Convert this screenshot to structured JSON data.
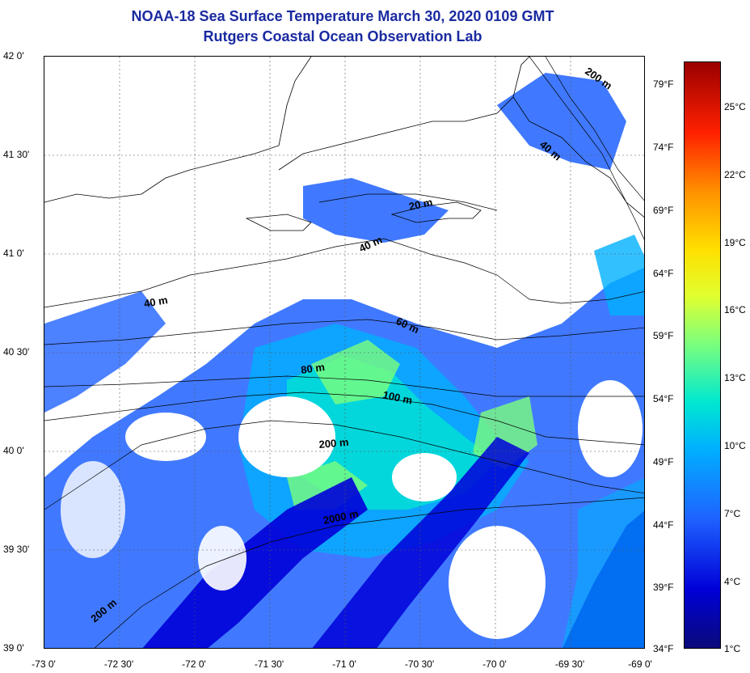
{
  "title": {
    "line1": "NOAA-18 Sea Surface Temperature March 30, 2020 0109 GMT",
    "line2": "Rutgers Coastal Ocean Observation Lab"
  },
  "lat_ticks": [
    "42 0'",
    "41 30'",
    "41 0'",
    "40 30'",
    "40 0'",
    "39 30'",
    "39 0'"
  ],
  "lon_ticks": [
    "-73 0'",
    "-72 30'",
    "-72 0'",
    "-71 30'",
    "-71 0'",
    "-70 30'",
    "-70 0'",
    "-69 30'",
    "-69 0'"
  ],
  "colorbar": {
    "fahrenheit": [
      "79°F",
      "74°F",
      "69°F",
      "64°F",
      "59°F",
      "54°F",
      "49°F",
      "44°F",
      "39°F",
      "34°F"
    ],
    "celsius": [
      "25°C",
      "22°C",
      "19°C",
      "16°C",
      "13°C",
      "10°C",
      "7°C",
      "4°C",
      "1°C"
    ],
    "colors": [
      "#0a0a7a",
      "#0000d8",
      "#1f62ff",
      "#00b0ff",
      "#00e8d0",
      "#7cff7c",
      "#e0ff30",
      "#ffe000",
      "#ff9000",
      "#ff2000",
      "#9a0000"
    ]
  },
  "contour_labels": [
    "20 m",
    "40 m",
    "40 m",
    "40 m",
    "60 m",
    "80 m",
    "100 m",
    "200 m",
    "2000 m",
    "200 m",
    "200 m"
  ],
  "colors": {
    "title": "#1a2aa0",
    "cold": "#0000d8",
    "cool": "#1f62ff",
    "mid": "#00b0ff",
    "teal": "#00e8d0",
    "green": "#7cff7c",
    "land": "#ffffff"
  }
}
